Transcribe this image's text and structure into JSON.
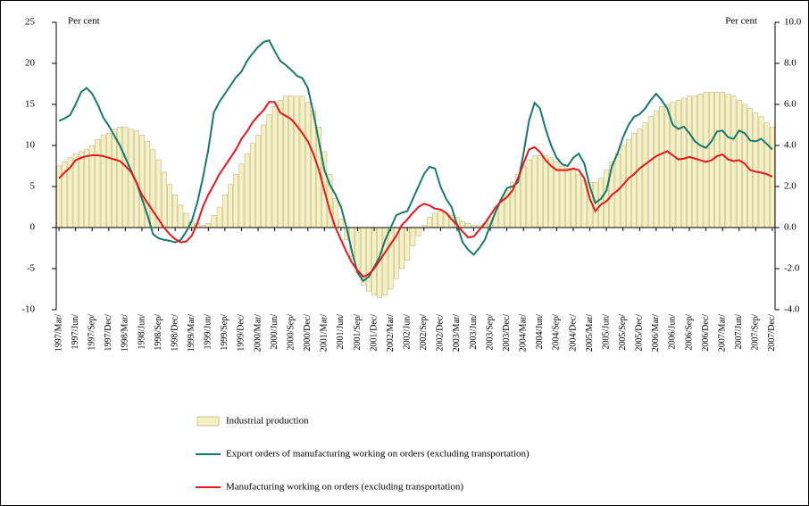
{
  "chart_data": {
    "type": "bar-line",
    "y_label": "Per cent",
    "y2_label": "Per cent",
    "categories": [
      "1997/Mar/",
      null,
      null,
      "1997/Jun/",
      null,
      null,
      "1997/Sep/",
      null,
      null,
      "1997/Dec/",
      null,
      null,
      "1998/Mar/",
      null,
      null,
      "1998/Jun/",
      null,
      null,
      "1998/Sep/",
      null,
      null,
      "1998/Dec/",
      null,
      null,
      "1999/Mar/",
      null,
      null,
      "1999/Jun/",
      null,
      null,
      "1999/Sep/",
      null,
      null,
      "1999/Dec/",
      null,
      null,
      "2000/Mar/",
      null,
      null,
      "2000/Jun/",
      null,
      null,
      "2000/Sep/",
      null,
      null,
      "2000/Dec/",
      null,
      null,
      "2001/Mar/",
      null,
      null,
      "2001/Jun/",
      null,
      null,
      "2001/Sep/",
      null,
      null,
      "2001/Dec/",
      null,
      null,
      "2002/Mar/",
      null,
      null,
      "2002/Jun/",
      null,
      null,
      "2002/Sep/",
      null,
      null,
      "2002/Dec/",
      null,
      null,
      "2003/Mar/",
      null,
      null,
      "2003/Jun/",
      null,
      null,
      "2003/Sep/",
      null,
      null,
      "2003/Dec/",
      null,
      null,
      "2004/Mar/",
      null,
      null,
      "2004/Jun/",
      null,
      null,
      "2004/Sep/",
      null,
      null,
      "2004/Dec/",
      null,
      null,
      "2005/Mar/",
      null,
      null,
      "2005/Jun/",
      null,
      null,
      "2005/Sep/",
      null,
      null,
      "2005/Dec/",
      null,
      null,
      "2006/Mar/",
      null,
      null,
      "2006/Jun/",
      null,
      null,
      "2006/Sep/",
      null,
      null,
      "2006/Dec/",
      null,
      null,
      "2007/Mar/",
      null,
      null,
      "2007/Jun/",
      null,
      null,
      "2007/Sep/",
      null,
      null,
      "2007/Dec/"
    ],
    "series": [
      {
        "name": "Industrial production",
        "type": "bar",
        "axis": "y2",
        "color": "#f5f1c2",
        "values": [
          3.0,
          3.2,
          3.4,
          3.6,
          3.7,
          3.8,
          4.0,
          4.3,
          4.5,
          4.6,
          4.8,
          4.9,
          4.9,
          4.8,
          4.7,
          4.5,
          4.2,
          3.8,
          3.3,
          2.7,
          2.1,
          1.6,
          1.1,
          0.7,
          0.3,
          0.2,
          0.1,
          0.2,
          0.6,
          1.0,
          1.6,
          2.1,
          2.6,
          3.1,
          3.6,
          4.1,
          4.5,
          5.0,
          5.5,
          5.9,
          6.2,
          6.4,
          6.4,
          6.4,
          6.4,
          6.1,
          5.7,
          4.9,
          3.7,
          2.6,
          1.4,
          0.4,
          -0.6,
          -1.4,
          -2.2,
          -2.8,
          -3.1,
          -3.3,
          -3.4,
          -3.3,
          -3.0,
          -2.5,
          -2.0,
          -1.6,
          -0.9,
          -0.4,
          0.1,
          0.5,
          0.7,
          0.8,
          0.7,
          0.6,
          0.5,
          0.3,
          0.2,
          0.1,
          0.1,
          0.2,
          0.5,
          1.0,
          1.4,
          1.8,
          2.2,
          2.6,
          3.0,
          3.3,
          3.5,
          3.5,
          3.5,
          3.4,
          3.2,
          3.0,
          2.9,
          2.8,
          2.6,
          2.3,
          2.2,
          2.2,
          2.4,
          2.8,
          3.2,
          3.6,
          4.0,
          4.3,
          4.6,
          4.8,
          5.1,
          5.4,
          5.7,
          5.9,
          6.0,
          6.1,
          6.2,
          6.3,
          6.4,
          6.4,
          6.5,
          6.6,
          6.6,
          6.6,
          6.6,
          6.5,
          6.4,
          6.2,
          6.0,
          5.8,
          5.6,
          5.4,
          5.1,
          4.9
        ]
      },
      {
        "name": "Export orders of manufacturing working on orders (excluding transportation)",
        "type": "line",
        "color": "#17796d",
        "values": [
          13,
          13.3,
          13.7,
          15,
          16.5,
          17,
          16.3,
          15,
          13.4,
          12.4,
          11.2,
          10,
          8.5,
          7,
          5.5,
          3.5,
          1.5,
          -0.8,
          -1.3,
          -1.5,
          -1.6,
          -1.8,
          -1.5,
          -0.5,
          0.8,
          3,
          6,
          9.5,
          14,
          15.3,
          16.3,
          17.3,
          18.3,
          19,
          20.3,
          21.2,
          22,
          22.6,
          22.8,
          21.5,
          20.3,
          19.8,
          19.2,
          18.5,
          18.2,
          17,
          14,
          10.5,
          7,
          5.2,
          4,
          2.5,
          0,
          -3,
          -5.5,
          -6.5,
          -6,
          -4.8,
          -3.5,
          -1.5,
          0,
          1.5,
          1.8,
          2,
          3.5,
          5,
          6.5,
          7.4,
          7.2,
          5,
          3.5,
          2.5,
          0.3,
          -1.8,
          -2.7,
          -3.3,
          -2.5,
          -1.5,
          0.3,
          2,
          3.5,
          4.8,
          5,
          5.5,
          9,
          13,
          15.2,
          14.5,
          12,
          10,
          8.5,
          7.7,
          7.5,
          8.5,
          9,
          7.8,
          5,
          3,
          3.5,
          4.5,
          7.5,
          9,
          11,
          12.5,
          13.5,
          13.8,
          14.5,
          15.5,
          16.3,
          15.5,
          14.5,
          12.5,
          12,
          12.3,
          11.5,
          10.5,
          10,
          9.7,
          10.5,
          11.7,
          11.8,
          11,
          10.8,
          11.8,
          11.5,
          10.6,
          10.5,
          10.8,
          10.2,
          9.5
        ]
      },
      {
        "name": "Manufacturing working on orders (excluding transportation)",
        "type": "line",
        "color": "#e8151b",
        "values": [
          6,
          6.7,
          7.3,
          8.2,
          8.5,
          8.7,
          8.8,
          8.8,
          8.7,
          8.5,
          8.3,
          8.1,
          7.5,
          6.8,
          5.5,
          4,
          3,
          2,
          1,
          0,
          -0.8,
          -1.4,
          -1.8,
          -1.7,
          -1,
          0.5,
          2.5,
          4,
          5.2,
          6.5,
          7.5,
          8.5,
          9.5,
          10.8,
          11.7,
          12.8,
          13.6,
          14.3,
          15.3,
          15.3,
          14,
          13.6,
          13.2,
          12.4,
          11.5,
          10.5,
          9,
          7,
          4.5,
          2,
          0,
          -1.5,
          -3,
          -4.3,
          -5.2,
          -6,
          -5.7,
          -5,
          -4,
          -3,
          -2,
          -1,
          0.3,
          1,
          1.8,
          2.5,
          2.9,
          2.7,
          2.3,
          2.2,
          1.8,
          1,
          0.3,
          -0.5,
          -1.2,
          -1.1,
          -0.3,
          0.5,
          1.5,
          2.5,
          3.2,
          3.7,
          4.5,
          6,
          7.8,
          9.5,
          9.8,
          9.2,
          8.2,
          7.5,
          7,
          7,
          7,
          7.2,
          7,
          6,
          3.5,
          2,
          2.8,
          3.2,
          4,
          4.5,
          5.2,
          6,
          6.5,
          7.2,
          7.7,
          8.2,
          8.7,
          9,
          9.3,
          8.8,
          8.3,
          8.4,
          8.6,
          8.4,
          8.2,
          8,
          8.2,
          8.7,
          8.9,
          8.3,
          8.1,
          8.2,
          7.8,
          7,
          6.8,
          6.7,
          6.5,
          6.2
        ]
      }
    ],
    "ylim": [
      -10,
      25
    ],
    "yticks": [
      -10,
      -5,
      0,
      5,
      10,
      15,
      20,
      25
    ],
    "y2lim": [
      -4,
      10
    ],
    "y2ticks": [
      {
        "value": -4,
        "label": "-4.0"
      },
      {
        "value": -2,
        "label": "-2.0"
      },
      {
        "value": 0,
        "label": "0.0"
      },
      {
        "value": 2,
        "label": "2.0"
      },
      {
        "value": 4,
        "label": "4.0"
      },
      {
        "value": 6,
        "label": "6.0"
      },
      {
        "value": 8,
        "label": "8.0"
      },
      {
        "value": 10,
        "label": "10.0"
      }
    ],
    "legend": "bottom"
  }
}
